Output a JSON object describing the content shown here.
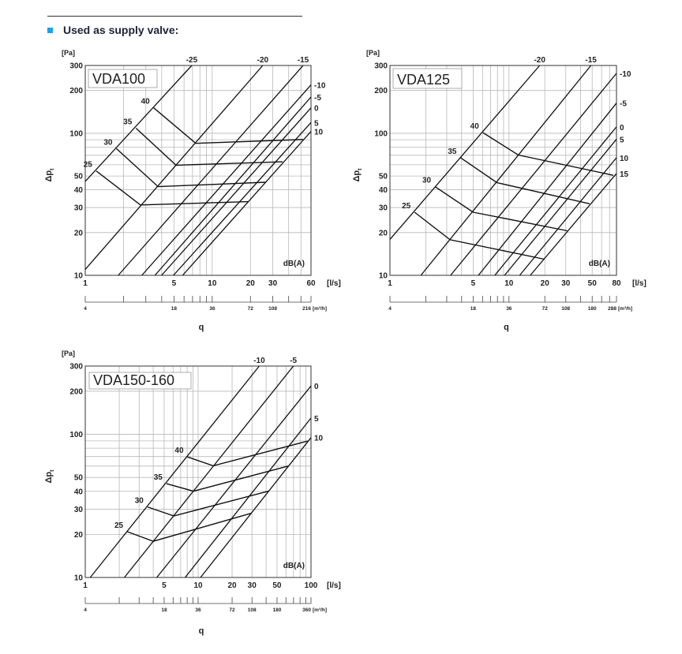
{
  "header": {
    "title": "Used as supply valve:",
    "bullet_color": "#1aa3e8"
  },
  "chart_data": [
    {
      "type": "line",
      "title": "VDA100",
      "xscale": "log",
      "yscale": "log",
      "xlim": [
        1,
        60
      ],
      "ylim": [
        10,
        300
      ],
      "xlabel": "q",
      "xunit": "[l/s]",
      "x2unit": "[m³/h]",
      "ylabel": "Δp",
      "ylabel_sub": "t",
      "yunit": "[Pa]",
      "note": "dB(A)",
      "grid": true,
      "xticks": [
        1,
        5,
        10,
        20,
        30,
        60
      ],
      "x2ticklabels": [
        "4",
        "18",
        "36",
        "72",
        "108",
        "216"
      ],
      "yticks": [
        10,
        20,
        30,
        40,
        50,
        100,
        200,
        300
      ],
      "sound_lines": [
        {
          "label": "-25",
          "pos": "top",
          "points": [
            [
              1,
              45.8
            ],
            [
              6.9,
              300
            ]
          ]
        },
        {
          "label": "-20",
          "pos": "top",
          "points": [
            [
              1,
              11.0
            ],
            [
              25,
              300
            ]
          ]
        },
        {
          "label": "-15",
          "pos": "top",
          "points": [
            [
              1.82,
              10
            ],
            [
              52,
              300
            ]
          ]
        },
        {
          "label": "-10",
          "pos": "right",
          "points": [
            [
              2.79,
              10
            ],
            [
              60,
              219
            ]
          ]
        },
        {
          "label": "-5",
          "pos": "right",
          "points": [
            [
              3.54,
              10
            ],
            [
              60,
              180
            ]
          ]
        },
        {
          "label": "0",
          "pos": "right",
          "points": [
            [
              3.99,
              10
            ],
            [
              60,
              151
            ]
          ]
        },
        {
          "label": "5",
          "pos": "right",
          "points": [
            [
              4.95,
              10
            ],
            [
              60,
              119
            ]
          ]
        },
        {
          "label": "10",
          "pos": "right",
          "points": [
            [
              5.85,
              10
            ],
            [
              60,
              103
            ]
          ]
        }
      ],
      "pressure_curves": [
        {
          "label": "25",
          "points": [
            [
              1.22,
              54.3
            ],
            [
              2.72,
              31.3
            ],
            [
              19.3,
              33
            ]
          ]
        },
        {
          "label": "30",
          "points": [
            [
              1.76,
              78
            ],
            [
              3.75,
              42.1
            ],
            [
              26.3,
              45.2
            ]
          ]
        },
        {
          "label": "35",
          "points": [
            [
              2.51,
              108.6
            ],
            [
              5.19,
              59.6
            ],
            [
              35.8,
              63
            ]
          ]
        },
        {
          "label": "40",
          "points": [
            [
              3.46,
              151
            ],
            [
              7.42,
              84.9
            ],
            [
              52,
              90.4
            ]
          ]
        }
      ]
    },
    {
      "type": "line",
      "title": "VDA125",
      "xscale": "log",
      "yscale": "log",
      "xlim": [
        1,
        80
      ],
      "ylim": [
        10,
        300
      ],
      "xlabel": "q",
      "xunit": "[l/s]",
      "x2unit": "[m³/h]",
      "ylabel": "Δp",
      "ylabel_sub": "t",
      "yunit": "[Pa]",
      "note": "dB(A)",
      "grid": true,
      "xticks": [
        1,
        5,
        10,
        20,
        30,
        50,
        80
      ],
      "x2ticklabels": [
        "4",
        "18",
        "36",
        "72",
        "108",
        "180",
        "288"
      ],
      "yticks": [
        10,
        20,
        30,
        40,
        50,
        100,
        200,
        300
      ],
      "sound_lines": [
        {
          "label": "-20",
          "pos": "top",
          "points": [
            [
              1,
              17.9
            ],
            [
              18.1,
              300
            ]
          ]
        },
        {
          "label": "-15",
          "pos": "top",
          "points": [
            [
              1.82,
              10
            ],
            [
              48.8,
              300
            ]
          ]
        },
        {
          "label": "-10",
          "pos": "right",
          "points": [
            [
              3.23,
              10
            ],
            [
              80,
              264
            ]
          ]
        },
        {
          "label": "-5",
          "pos": "right",
          "points": [
            [
              5.54,
              10
            ],
            [
              80,
              163
            ]
          ]
        },
        {
          "label": "0",
          "pos": "right",
          "points": [
            [
              7.6,
              10
            ],
            [
              80,
              111
            ]
          ]
        },
        {
          "label": "5",
          "pos": "right",
          "points": [
            [
              9.18,
              10
            ],
            [
              80,
              90.8
            ]
          ]
        },
        {
          "label": "10",
          "pos": "right",
          "points": [
            [
              12.3,
              10
            ],
            [
              80,
              67.3
            ]
          ]
        },
        {
          "label": "15",
          "pos": "right",
          "points": [
            [
              15.1,
              10
            ],
            [
              80,
              52.1
            ]
          ]
        }
      ],
      "pressure_curves": [
        {
          "label": "25",
          "points": [
            [
              1.61,
              27.8
            ],
            [
              3.2,
              17.8
            ],
            [
              19.8,
              13.0
            ]
          ]
        },
        {
          "label": "30",
          "points": [
            [
              2.39,
              42.1
            ],
            [
              5.0,
              27.8
            ],
            [
              30.8,
              20.6
            ]
          ]
        },
        {
          "label": "35",
          "points": [
            [
              3.92,
              67.3
            ],
            [
              7.91,
              44.9
            ],
            [
              47.6,
              31.9
            ]
          ]
        },
        {
          "label": "40",
          "points": [
            [
              6.04,
              101
            ],
            [
              12.0,
              70.3
            ],
            [
              75.3,
              50.6
            ]
          ]
        }
      ]
    },
    {
      "type": "line",
      "title": "VDA150-160",
      "xscale": "log",
      "yscale": "log",
      "xlim": [
        1,
        100
      ],
      "ylim": [
        10,
        300
      ],
      "xlabel": "q",
      "xunit": "[l/s]",
      "x2unit": "[m³/h]",
      "ylabel": "Δp",
      "ylabel_sub": "t",
      "yunit": "[Pa]",
      "note": "dB(A)",
      "grid": true,
      "xticks": [
        1,
        5,
        10,
        20,
        30,
        50,
        100
      ],
      "x2ticklabels": [
        "4",
        "18",
        "36",
        "72",
        "108",
        "180",
        "360"
      ],
      "yticks": [
        10,
        20,
        30,
        40,
        50,
        100,
        200,
        300
      ],
      "sound_lines": [
        {
          "label": "-10",
          "pos": "top",
          "points": [
            [
              1.107,
              10
            ],
            [
              34.8,
              300
            ]
          ]
        },
        {
          "label": "-5",
          "pos": "top",
          "points": [
            [
              2.22,
              10
            ],
            [
              69.8,
              300
            ]
          ]
        },
        {
          "label": "0",
          "pos": "right",
          "points": [
            [
              4.3,
              10
            ],
            [
              100,
              218
            ]
          ]
        },
        {
          "label": "5",
          "pos": "right",
          "points": [
            [
              7.67,
              10
            ],
            [
              100,
              130
            ]
          ]
        },
        {
          "label": "10",
          "pos": "right",
          "points": [
            [
              10.5,
              10
            ],
            [
              100,
              94.9
            ]
          ]
        }
      ],
      "pressure_curves": [
        {
          "label": "25",
          "points": [
            [
              2.35,
              20.9
            ],
            [
              4.01,
              17.9
            ],
            [
              29.6,
              28.1
            ]
          ]
        },
        {
          "label": "30",
          "points": [
            [
              3.56,
              31.1
            ],
            [
              6.09,
              26.9
            ],
            [
              42,
              40.1
            ]
          ]
        },
        {
          "label": "35",
          "points": [
            [
              5.24,
              45.2
            ],
            [
              9.1,
              40.1
            ],
            [
              62.7,
              60
            ]
          ]
        },
        {
          "label": "40",
          "points": [
            [
              8.05,
              69.5
            ],
            [
              13.6,
              60.3
            ],
            [
              93.7,
              89.8
            ]
          ]
        }
      ]
    }
  ]
}
